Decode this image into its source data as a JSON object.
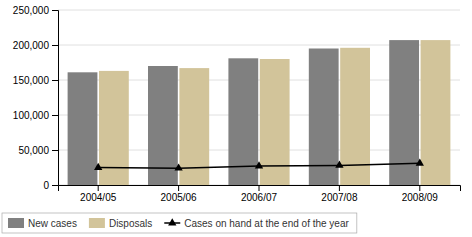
{
  "chart_data": {
    "type": "bar",
    "categories": [
      "2004/05",
      "2005/06",
      "2006/07",
      "2007/08",
      "2008/09"
    ],
    "series": [
      {
        "name": "New cases",
        "color": "#808080",
        "values": [
          161000,
          170000,
          181000,
          195000,
          207000
        ]
      },
      {
        "name": "Disposals",
        "color": "#d2c49a",
        "values": [
          163000,
          167000,
          180000,
          196000,
          207000
        ]
      },
      {
        "name": "Cases on hand at the end of the year",
        "type": "line",
        "color": "#000000",
        "marker": "triangle",
        "values": [
          25000,
          24000,
          27000,
          28000,
          31000
        ]
      }
    ],
    "ylim": [
      0,
      250000
    ],
    "yticks": [
      0,
      {
        "value": 50000,
        "label": "50,000"
      },
      {
        "value": 100000,
        "label": "100,000"
      },
      {
        "value": 150000,
        "label": "150,000"
      },
      {
        "value": 200000,
        "label": "200,000"
      },
      {
        "value": 250000,
        "label": "250,000"
      }
    ],
    "grid": true,
    "legend": "bottom"
  }
}
